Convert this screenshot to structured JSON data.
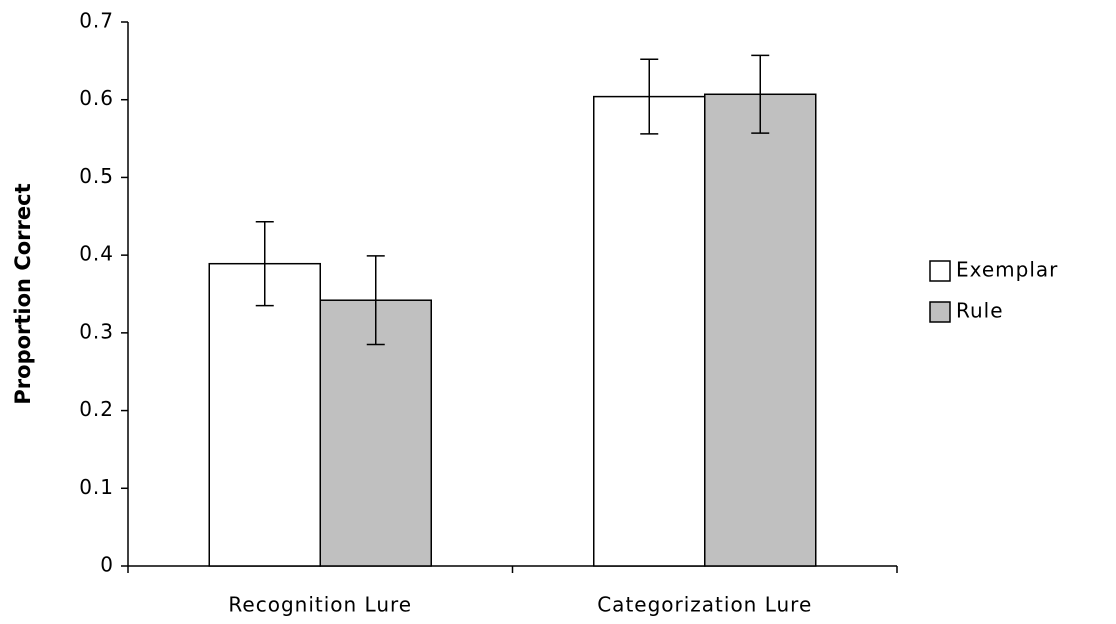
{
  "chart_data": {
    "type": "bar",
    "y_label": "Proportion Correct",
    "categories": [
      "Recognition Lure",
      "Categorization Lure"
    ],
    "series": [
      {
        "name": "Exemplar",
        "color": "#ffffff",
        "values": [
          0.389,
          0.604
        ],
        "errors": [
          0.054,
          0.048
        ]
      },
      {
        "name": "Rule",
        "color": "#c0c0c0",
        "values": [
          0.342,
          0.607
        ],
        "errors": [
          0.057,
          0.05
        ]
      }
    ],
    "ylim": [
      0,
      0.7
    ],
    "yticks": [
      0,
      0.1,
      0.2,
      0.3,
      0.4,
      0.5,
      0.6,
      0.7
    ],
    "grid": false,
    "legend": "right"
  }
}
